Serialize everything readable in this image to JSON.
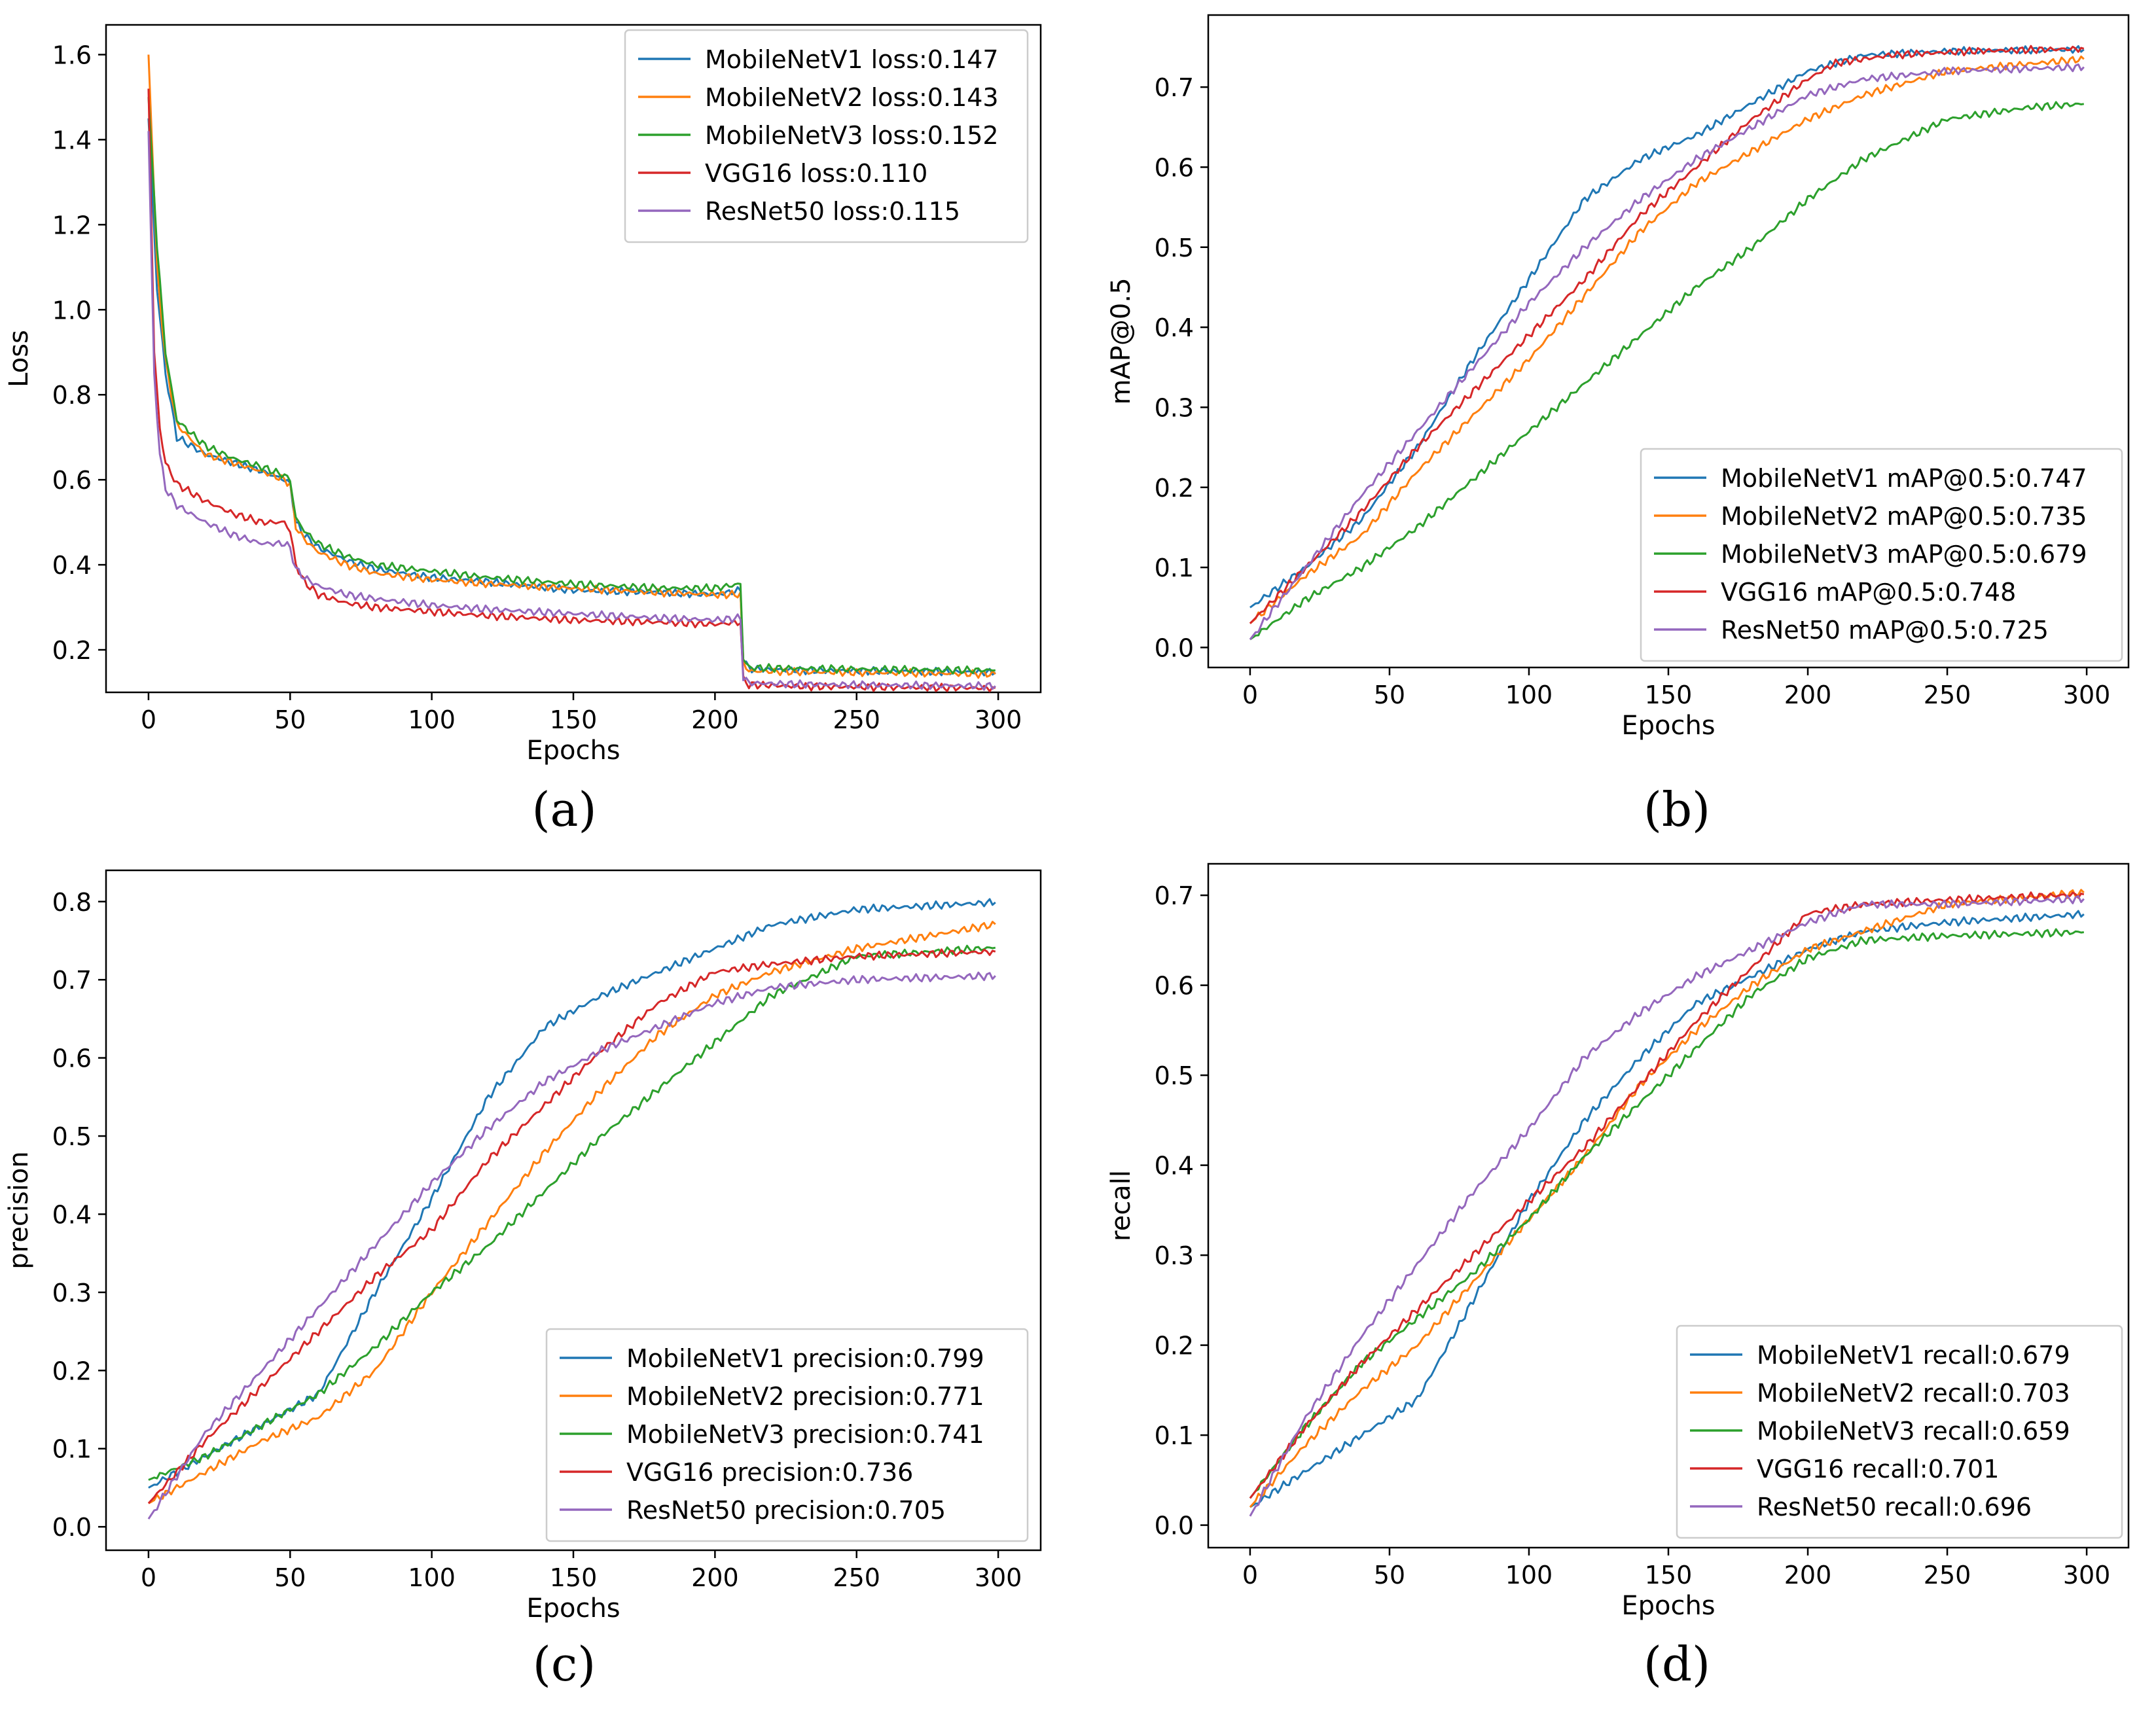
{
  "colors": {
    "MobileNetV1": "#1f77b4",
    "MobileNetV2": "#ff7f0e",
    "MobileNetV3": "#2ca02c",
    "VGG16": "#d62728",
    "ResNet50": "#9467bd"
  },
  "chart_data": [
    {
      "id": "a",
      "caption": "(a)",
      "type": "line",
      "xlabel": "Epochs",
      "ylabel": "Loss",
      "xlim": [
        -15,
        315
      ],
      "ylim": [
        0.1,
        1.67
      ],
      "xticks": [
        0,
        50,
        100,
        150,
        200,
        250,
        300
      ],
      "yticks": [
        0.2,
        0.4,
        0.6,
        0.8,
        1.0,
        1.2,
        1.4,
        1.6
      ],
      "ytick_labels": [
        "0.2",
        "0.4",
        "0.6",
        "0.8",
        "1.0",
        "1.2",
        "1.4",
        "1.6"
      ],
      "legend_position": "top-right",
      "series": [
        {
          "name": "MobileNetV1",
          "label": "MobileNetV1 loss:0.147",
          "x": [
            0,
            3,
            6,
            10,
            20,
            30,
            40,
            48,
            50,
            52,
            55,
            60,
            70,
            80,
            100,
            120,
            150,
            180,
            200,
            209,
            210,
            212,
            230,
            260,
            299
          ],
          "y": [
            1.45,
            1.05,
            0.85,
            0.7,
            0.66,
            0.64,
            0.62,
            0.6,
            0.59,
            0.5,
            0.47,
            0.44,
            0.41,
            0.39,
            0.37,
            0.36,
            0.34,
            0.335,
            0.33,
            0.34,
            0.18,
            0.155,
            0.152,
            0.15,
            0.147
          ]
        },
        {
          "name": "MobileNetV2",
          "label": "MobileNetV2 loss:0.143",
          "x": [
            0,
            3,
            6,
            10,
            20,
            30,
            40,
            48,
            50,
            52,
            55,
            60,
            70,
            80,
            100,
            120,
            150,
            180,
            200,
            209,
            210,
            212,
            230,
            260,
            299
          ],
          "y": [
            1.6,
            1.1,
            0.88,
            0.73,
            0.66,
            0.64,
            0.62,
            0.6,
            0.59,
            0.49,
            0.46,
            0.43,
            0.4,
            0.38,
            0.365,
            0.355,
            0.345,
            0.335,
            0.33,
            0.33,
            0.17,
            0.15,
            0.148,
            0.146,
            0.143
          ]
        },
        {
          "name": "MobileNetV3",
          "label": "MobileNetV3 loss:0.152",
          "x": [
            0,
            3,
            6,
            10,
            20,
            30,
            40,
            48,
            50,
            52,
            55,
            60,
            70,
            80,
            100,
            120,
            150,
            180,
            200,
            209,
            210,
            212,
            230,
            260,
            299
          ],
          "y": [
            1.5,
            1.15,
            0.9,
            0.74,
            0.68,
            0.65,
            0.63,
            0.61,
            0.6,
            0.51,
            0.48,
            0.45,
            0.42,
            0.4,
            0.385,
            0.37,
            0.355,
            0.345,
            0.345,
            0.355,
            0.18,
            0.158,
            0.156,
            0.154,
            0.152
          ]
        },
        {
          "name": "VGG16",
          "label": "VGG16 loss:0.110",
          "x": [
            0,
            2,
            4,
            6,
            10,
            20,
            30,
            40,
            48,
            50,
            52,
            55,
            60,
            70,
            80,
            100,
            120,
            150,
            180,
            200,
            209,
            210,
            212,
            230,
            260,
            299
          ],
          "y": [
            1.52,
            0.9,
            0.72,
            0.64,
            0.59,
            0.55,
            0.52,
            0.5,
            0.5,
            0.48,
            0.4,
            0.36,
            0.33,
            0.31,
            0.3,
            0.29,
            0.28,
            0.27,
            0.265,
            0.26,
            0.265,
            0.13,
            0.118,
            0.114,
            0.112,
            0.11
          ]
        },
        {
          "name": "ResNet50",
          "label": "ResNet50 loss:0.115",
          "x": [
            0,
            2,
            4,
            6,
            10,
            20,
            30,
            40,
            48,
            50,
            52,
            55,
            60,
            70,
            80,
            100,
            120,
            150,
            180,
            200,
            209,
            210,
            212,
            230,
            260,
            299
          ],
          "y": [
            1.42,
            0.85,
            0.66,
            0.58,
            0.54,
            0.5,
            0.47,
            0.45,
            0.45,
            0.44,
            0.39,
            0.37,
            0.35,
            0.33,
            0.32,
            0.305,
            0.295,
            0.285,
            0.275,
            0.27,
            0.275,
            0.135,
            0.122,
            0.119,
            0.117,
            0.115
          ]
        }
      ]
    },
    {
      "id": "b",
      "caption": "(b)",
      "type": "line",
      "xlabel": "Epochs",
      "ylabel": "mAP@0.5",
      "xlim": [
        -15,
        315
      ],
      "ylim": [
        -0.025,
        0.79
      ],
      "xticks": [
        0,
        50,
        100,
        150,
        200,
        250,
        300
      ],
      "yticks": [
        0.0,
        0.1,
        0.2,
        0.3,
        0.4,
        0.5,
        0.6,
        0.7
      ],
      "ytick_labels": [
        "0.0",
        "0.1",
        "0.2",
        "0.3",
        "0.4",
        "0.5",
        "0.6",
        "0.7"
      ],
      "legend_position": "lower-right",
      "series": [
        {
          "name": "MobileNetV1",
          "label": "MobileNetV1  mAP@0.5:0.747",
          "x": [
            0,
            20,
            40,
            60,
            80,
            100,
            120,
            140,
            160,
            180,
            200,
            220,
            250,
            299
          ],
          "y": [
            0.05,
            0.1,
            0.16,
            0.25,
            0.36,
            0.46,
            0.56,
            0.61,
            0.64,
            0.68,
            0.72,
            0.74,
            0.745,
            0.747
          ]
        },
        {
          "name": "MobileNetV2",
          "label": "MobileNetV2  mAP@0.5:0.735",
          "x": [
            0,
            20,
            40,
            60,
            80,
            100,
            120,
            140,
            160,
            180,
            200,
            220,
            250,
            299
          ],
          "y": [
            0.03,
            0.09,
            0.14,
            0.22,
            0.29,
            0.36,
            0.44,
            0.52,
            0.58,
            0.62,
            0.66,
            0.69,
            0.72,
            0.735
          ]
        },
        {
          "name": "MobileNetV3",
          "label": "MobileNetV3  mAP@0.5:0.679",
          "x": [
            0,
            20,
            40,
            60,
            80,
            100,
            120,
            140,
            160,
            180,
            200,
            220,
            250,
            280,
            299
          ],
          "y": [
            0.01,
            0.06,
            0.1,
            0.15,
            0.21,
            0.27,
            0.33,
            0.39,
            0.45,
            0.5,
            0.56,
            0.61,
            0.66,
            0.675,
            0.679
          ]
        },
        {
          "name": "VGG16",
          "label": "VGG16  mAP@0.5:0.748",
          "x": [
            0,
            20,
            40,
            60,
            80,
            100,
            120,
            140,
            160,
            180,
            200,
            210,
            230,
            260,
            299
          ],
          "y": [
            0.03,
            0.1,
            0.17,
            0.25,
            0.32,
            0.39,
            0.46,
            0.54,
            0.6,
            0.66,
            0.71,
            0.73,
            0.74,
            0.745,
            0.748
          ]
        },
        {
          "name": "ResNet50",
          "label": "ResNet50  mAP@0.5:0.725",
          "x": [
            0,
            20,
            40,
            60,
            80,
            100,
            120,
            140,
            160,
            180,
            200,
            220,
            250,
            299
          ],
          "y": [
            0.01,
            0.1,
            0.19,
            0.27,
            0.35,
            0.43,
            0.5,
            0.56,
            0.61,
            0.65,
            0.69,
            0.71,
            0.72,
            0.725
          ]
        }
      ]
    },
    {
      "id": "c",
      "caption": "(c)",
      "type": "line",
      "xlabel": "Epochs",
      "ylabel": "precision",
      "xlim": [
        -15,
        315
      ],
      "ylim": [
        -0.03,
        0.84
      ],
      "xticks": [
        0,
        50,
        100,
        150,
        200,
        250,
        300
      ],
      "yticks": [
        0.0,
        0.1,
        0.2,
        0.3,
        0.4,
        0.5,
        0.6,
        0.7,
        0.8
      ],
      "ytick_labels": [
        "0.0",
        "0.1",
        "0.2",
        "0.3",
        "0.4",
        "0.5",
        "0.6",
        "0.7",
        "0.8"
      ],
      "legend_position": "lower-right",
      "series": [
        {
          "name": "MobileNetV1",
          "label": "MobileNetV1  precision:0.799",
          "x": [
            0,
            20,
            40,
            60,
            80,
            100,
            120,
            140,
            160,
            180,
            200,
            220,
            250,
            299
          ],
          "y": [
            0.05,
            0.09,
            0.13,
            0.17,
            0.3,
            0.42,
            0.55,
            0.64,
            0.68,
            0.71,
            0.74,
            0.77,
            0.79,
            0.799
          ]
        },
        {
          "name": "MobileNetV2",
          "label": "MobileNetV2  precision:0.771",
          "x": [
            0,
            20,
            40,
            60,
            80,
            100,
            120,
            140,
            160,
            180,
            200,
            220,
            250,
            299
          ],
          "y": [
            0.03,
            0.07,
            0.11,
            0.14,
            0.2,
            0.3,
            0.39,
            0.48,
            0.56,
            0.63,
            0.68,
            0.71,
            0.74,
            0.771
          ]
        },
        {
          "name": "MobileNetV3",
          "label": "MobileNetV3  precision:0.741",
          "x": [
            0,
            20,
            40,
            60,
            80,
            100,
            120,
            140,
            160,
            180,
            200,
            220,
            250,
            299
          ],
          "y": [
            0.06,
            0.09,
            0.13,
            0.17,
            0.23,
            0.3,
            0.36,
            0.43,
            0.5,
            0.56,
            0.62,
            0.68,
            0.73,
            0.741
          ]
        },
        {
          "name": "VGG16",
          "label": "VGG16  precision:0.736",
          "x": [
            0,
            20,
            40,
            60,
            80,
            100,
            120,
            140,
            160,
            180,
            200,
            220,
            250,
            299
          ],
          "y": [
            0.03,
            0.11,
            0.18,
            0.25,
            0.32,
            0.38,
            0.47,
            0.54,
            0.61,
            0.67,
            0.71,
            0.72,
            0.73,
            0.736
          ]
        },
        {
          "name": "ResNet50",
          "label": "ResNet50  precision:0.705",
          "x": [
            0,
            20,
            40,
            60,
            80,
            100,
            120,
            140,
            160,
            180,
            200,
            220,
            250,
            299
          ],
          "y": [
            0.01,
            0.12,
            0.2,
            0.28,
            0.36,
            0.44,
            0.51,
            0.57,
            0.61,
            0.64,
            0.67,
            0.69,
            0.7,
            0.705
          ]
        }
      ]
    },
    {
      "id": "d",
      "caption": "(d)",
      "type": "line",
      "xlabel": "Epochs",
      "ylabel": "recall",
      "xlim": [
        -15,
        315
      ],
      "ylim": [
        -0.025,
        0.735
      ],
      "xticks": [
        0,
        50,
        100,
        150,
        200,
        250,
        300
      ],
      "yticks": [
        0.0,
        0.1,
        0.2,
        0.3,
        0.4,
        0.5,
        0.6,
        0.7
      ],
      "ytick_labels": [
        "0.0",
        "0.1",
        "0.2",
        "0.3",
        "0.4",
        "0.5",
        "0.6",
        "0.7"
      ],
      "legend_position": "lower-right",
      "series": [
        {
          "name": "MobileNetV1",
          "label": "MobileNetV1  recall:0.679",
          "x": [
            0,
            20,
            40,
            60,
            80,
            100,
            120,
            140,
            160,
            180,
            200,
            220,
            250,
            299
          ],
          "y": [
            0.02,
            0.06,
            0.1,
            0.14,
            0.25,
            0.36,
            0.45,
            0.52,
            0.58,
            0.61,
            0.64,
            0.66,
            0.67,
            0.679
          ]
        },
        {
          "name": "MobileNetV2",
          "label": "MobileNetV2  recall:0.703",
          "x": [
            0,
            20,
            40,
            60,
            80,
            100,
            120,
            140,
            160,
            180,
            200,
            220,
            250,
            299
          ],
          "y": [
            0.02,
            0.09,
            0.15,
            0.2,
            0.27,
            0.34,
            0.41,
            0.49,
            0.55,
            0.6,
            0.64,
            0.66,
            0.69,
            0.703
          ]
        },
        {
          "name": "MobileNetV3",
          "label": "MobileNetV3  recall:0.659",
          "x": [
            0,
            20,
            40,
            60,
            80,
            100,
            120,
            140,
            160,
            180,
            200,
            220,
            250,
            299
          ],
          "y": [
            0.03,
            0.11,
            0.18,
            0.23,
            0.28,
            0.34,
            0.41,
            0.47,
            0.53,
            0.59,
            0.63,
            0.65,
            0.655,
            0.659
          ]
        },
        {
          "name": "VGG16",
          "label": "VGG16  recall:0.701",
          "x": [
            0,
            20,
            40,
            60,
            80,
            100,
            120,
            140,
            160,
            180,
            200,
            220,
            250,
            299
          ],
          "y": [
            0.03,
            0.11,
            0.18,
            0.24,
            0.3,
            0.36,
            0.42,
            0.49,
            0.56,
            0.62,
            0.68,
            0.69,
            0.695,
            0.701
          ]
        },
        {
          "name": "ResNet50",
          "label": "ResNet50  recall:0.696",
          "x": [
            0,
            20,
            40,
            60,
            80,
            100,
            120,
            140,
            160,
            180,
            200,
            220,
            250,
            299
          ],
          "y": [
            0.01,
            0.12,
            0.21,
            0.29,
            0.37,
            0.44,
            0.52,
            0.57,
            0.61,
            0.64,
            0.67,
            0.69,
            0.69,
            0.696
          ]
        }
      ]
    }
  ]
}
